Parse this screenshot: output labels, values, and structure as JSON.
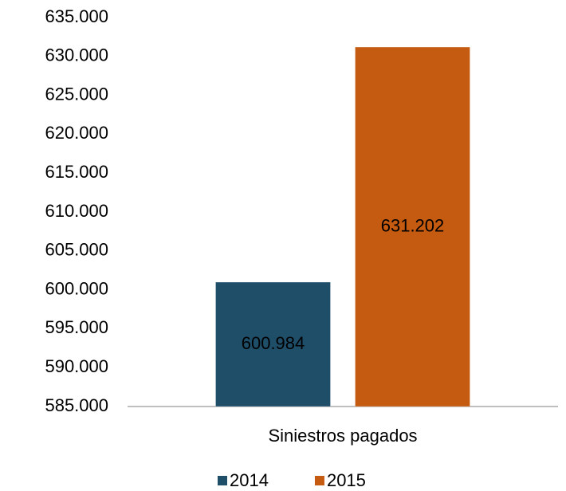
{
  "chart_data": {
    "type": "bar",
    "categories": [
      "Siniestros pagados"
    ],
    "series": [
      {
        "name": "2014",
        "color": "#1f4e69",
        "values": [
          600984
        ],
        "value_labels": [
          "600.984"
        ]
      },
      {
        "name": "2015",
        "color": "#c55a11",
        "values": [
          631202
        ],
        "value_labels": [
          "631.202"
        ]
      }
    ],
    "ylim": [
      585000,
      635000
    ],
    "yticks": [
      {
        "value": 585000,
        "label": "585.000"
      },
      {
        "value": 590000,
        "label": "590.000"
      },
      {
        "value": 595000,
        "label": "595.000"
      },
      {
        "value": 600000,
        "label": "600.000"
      },
      {
        "value": 605000,
        "label": "605.000"
      },
      {
        "value": 610000,
        "label": "610.000"
      },
      {
        "value": 615000,
        "label": "615.000"
      },
      {
        "value": 620000,
        "label": "620.000"
      },
      {
        "value": 625000,
        "label": "625.000"
      },
      {
        "value": 630000,
        "label": "630.000"
      },
      {
        "value": 635000,
        "label": "635.000"
      }
    ],
    "grid": false,
    "legend": "bottom"
  }
}
